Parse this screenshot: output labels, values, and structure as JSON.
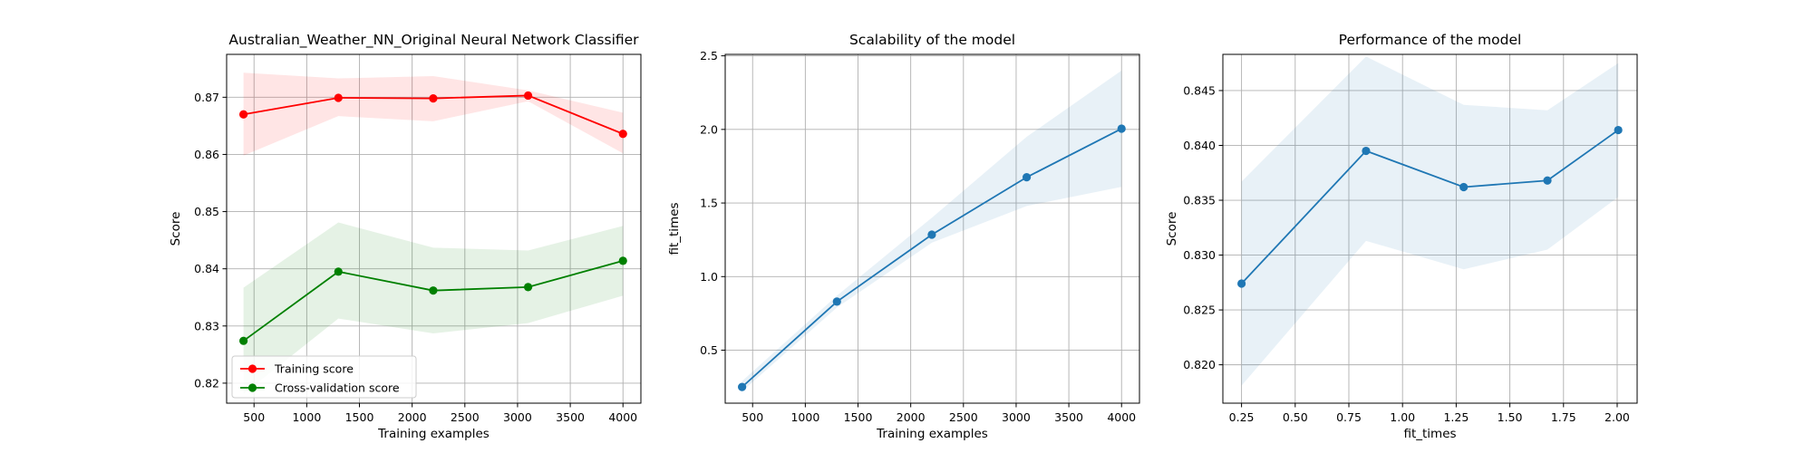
{
  "chart_data": [
    {
      "type": "line",
      "title": "Australian_Weather_NN_Original Neural Network Classifier",
      "xlabel": "Training examples",
      "ylabel": "Score",
      "xlim": [
        240,
        4170
      ],
      "ylim": [
        0.8165,
        0.8775
      ],
      "xticks": [
        500,
        1000,
        1500,
        2000,
        2500,
        3000,
        3500,
        4000
      ],
      "yticks": [
        0.82,
        0.83,
        0.84,
        0.85,
        0.86,
        0.87
      ],
      "ytick_labels": [
        "0.82",
        "0.83",
        "0.84",
        "0.85",
        "0.86",
        "0.87"
      ],
      "grid": true,
      "legend_position": "lower-left",
      "x": [
        400,
        1300,
        2200,
        3100,
        4000
      ],
      "series": [
        {
          "name": "Training score",
          "color": "#ff0000",
          "band_color": "#ff0000",
          "values": [
            0.867,
            0.8699,
            0.8698,
            0.8703,
            0.8636
          ],
          "upper": [
            0.8743,
            0.8733,
            0.8737,
            0.8712,
            0.8673
          ],
          "lower": [
            0.8598,
            0.8667,
            0.8658,
            0.8693,
            0.8602
          ]
        },
        {
          "name": "Cross-validation score",
          "color": "#008000",
          "band_color": "#008000",
          "values": [
            0.8274,
            0.8395,
            0.8362,
            0.8368,
            0.8414
          ],
          "upper": [
            0.8367,
            0.8481,
            0.8437,
            0.8432,
            0.8475
          ],
          "lower": [
            0.8181,
            0.8313,
            0.8287,
            0.8305,
            0.8353
          ]
        }
      ]
    },
    {
      "type": "line",
      "title": "Scalability of the model",
      "xlabel": "Training examples",
      "ylabel": "fit_times",
      "xlim": [
        240,
        4170
      ],
      "ylim": [
        0.14,
        2.51
      ],
      "xticks": [
        500,
        1000,
        1500,
        2000,
        2500,
        3000,
        3500,
        4000
      ],
      "yticks": [
        0.5,
        1.0,
        1.5,
        2.0,
        2.5
      ],
      "ytick_labels": [
        "0.5",
        "1.0",
        "1.5",
        "2.0",
        "2.5"
      ],
      "grid": true,
      "x": [
        400,
        1300,
        2200,
        3100,
        4000
      ],
      "series": [
        {
          "color": "#1f77b4",
          "band_color": "#1f77b4",
          "values": [
            0.25,
            0.83,
            1.285,
            1.675,
            2.005
          ],
          "upper": [
            0.29,
            0.87,
            1.4,
            1.95,
            2.4
          ],
          "lower": [
            0.22,
            0.79,
            1.23,
            1.48,
            1.61
          ]
        }
      ]
    },
    {
      "type": "line",
      "title": "Performance of the model",
      "xlabel": "fit_times",
      "ylabel": "Score",
      "xlim": [
        0.163,
        2.093
      ],
      "ylim": [
        0.8165,
        0.8483
      ],
      "xticks": [
        0.25,
        0.5,
        0.75,
        1.0,
        1.25,
        1.5,
        1.75,
        2.0
      ],
      "xtick_labels": [
        "0.25",
        "0.50",
        "0.75",
        "1.00",
        "1.25",
        "1.50",
        "1.75",
        "2.00"
      ],
      "yticks": [
        0.82,
        0.825,
        0.83,
        0.835,
        0.84,
        0.845
      ],
      "ytick_labels": [
        "0.820",
        "0.825",
        "0.830",
        "0.835",
        "0.840",
        "0.845"
      ],
      "grid": true,
      "x": [
        0.25,
        0.83,
        1.285,
        1.675,
        2.005
      ],
      "series": [
        {
          "color": "#1f77b4",
          "band_color": "#1f77b4",
          "values": [
            0.8274,
            0.8395,
            0.8362,
            0.8368,
            0.8414
          ],
          "upper": [
            0.8367,
            0.8481,
            0.8437,
            0.8432,
            0.8475
          ],
          "lower": [
            0.8181,
            0.8313,
            0.8287,
            0.8305,
            0.8353
          ]
        }
      ]
    }
  ]
}
